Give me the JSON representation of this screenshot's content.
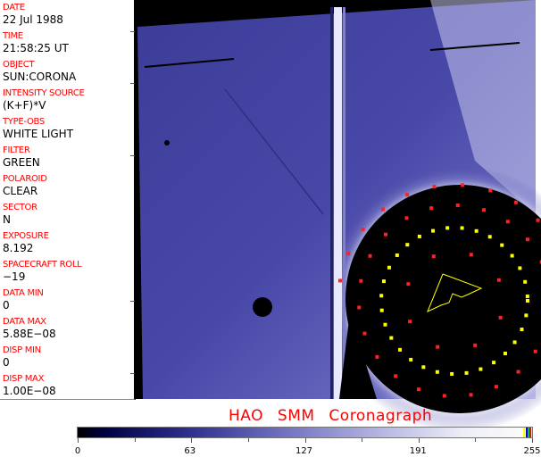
{
  "info_panel": [
    {
      "label": "DATE",
      "value": "22 Jul 1988"
    },
    {
      "label": "TIME",
      "value": "21:58:25 UT"
    },
    {
      "label": "OBJECT",
      "value": "SUN:CORONA"
    },
    {
      "label": "INTENSITY SOURCE",
      "value": "(K+F)*V"
    },
    {
      "label": "TYPE-OBS",
      "value": "WHITE LIGHT"
    },
    {
      "label": "FILTER",
      "value": "GREEN"
    },
    {
      "label": "POLAROID",
      "value": "CLEAR"
    },
    {
      "label": "SECTOR",
      "value": "N"
    },
    {
      "label": "EXPOSURE",
      "value": "8.192"
    },
    {
      "label": "SPACECRAFT ROLL",
      "value": "−19"
    },
    {
      "label": "DATA MIN",
      "value": "0"
    },
    {
      "label": "DATA MAX",
      "value": "5.88E−08"
    },
    {
      "label": "DISP MIN",
      "value": "0"
    },
    {
      "label": "DISP MAX",
      "value": "1.00E−08"
    }
  ],
  "title": "HAO SMM Coronagraph",
  "colorbar": {
    "ticks": [
      "0",
      "63",
      "127",
      "191",
      "255"
    ],
    "range": [
      0,
      255
    ],
    "overlay_colors": [
      "#ffff00",
      "#0000ff",
      "#00ff00",
      "#ff0000"
    ]
  },
  "colors": {
    "label": "#ff0000",
    "field": "#4a4aa8",
    "occulter": "#000000",
    "overlay_yellow": "#ffff00",
    "overlay_red": "#ff2020"
  }
}
